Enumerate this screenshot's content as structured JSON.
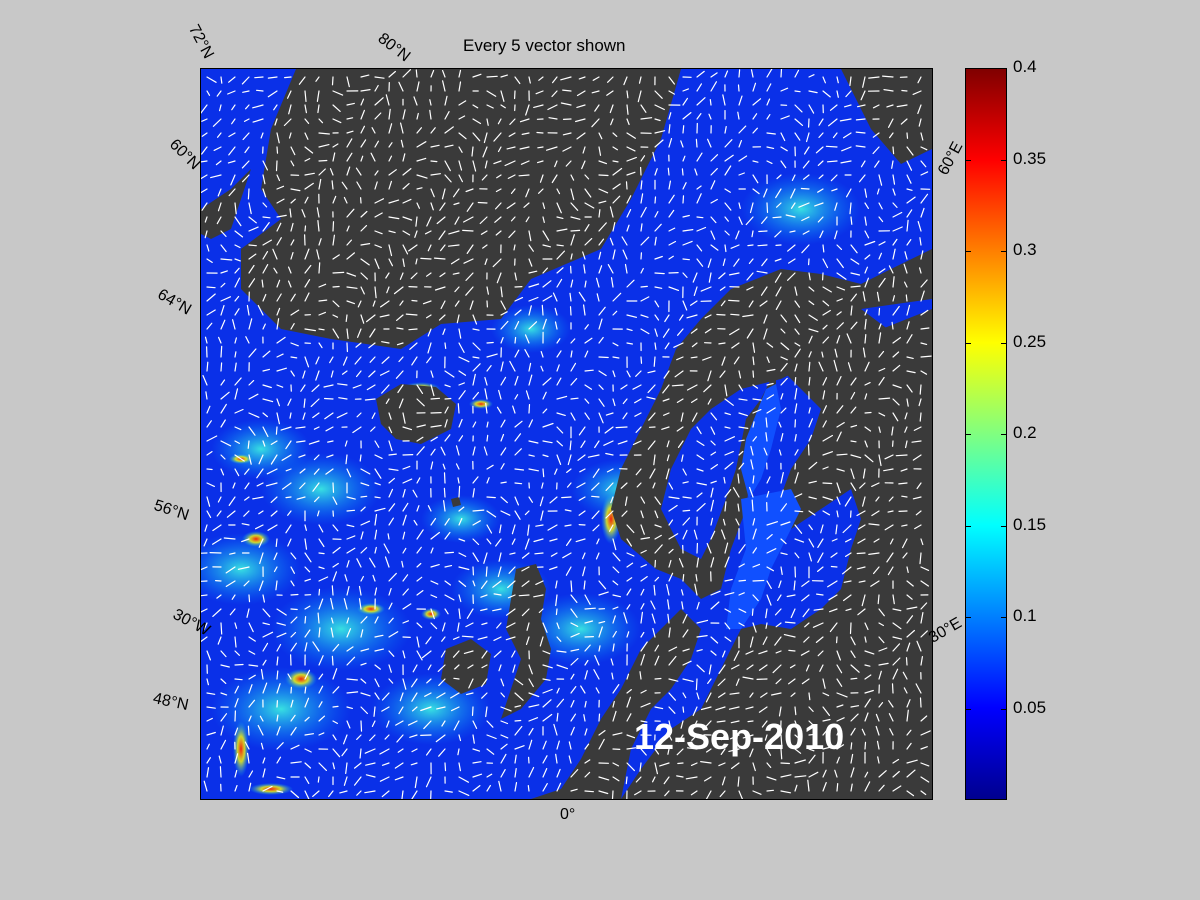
{
  "title": "Every 5 vector shown",
  "date": "12-Sep-2010",
  "lat_labels": [
    "72°N",
    "60°N",
    "64°N",
    "56°N",
    "48°N"
  ],
  "lon_labels": [
    "80°N",
    "60°E",
    "30°E",
    "0°",
    "30°W"
  ],
  "colorbar": {
    "ticks": [
      "0.4",
      "0.35",
      "0.3",
      "0.25",
      "0.2",
      "0.15",
      "0.1",
      "0.05"
    ],
    "range": [
      0,
      0.4
    ],
    "colormap": "jet"
  },
  "colors": {
    "background": "#c8c8c8",
    "land": "#3a3a3a",
    "ocean_low": "#0a28e0",
    "ocean_high": "#800000"
  }
}
